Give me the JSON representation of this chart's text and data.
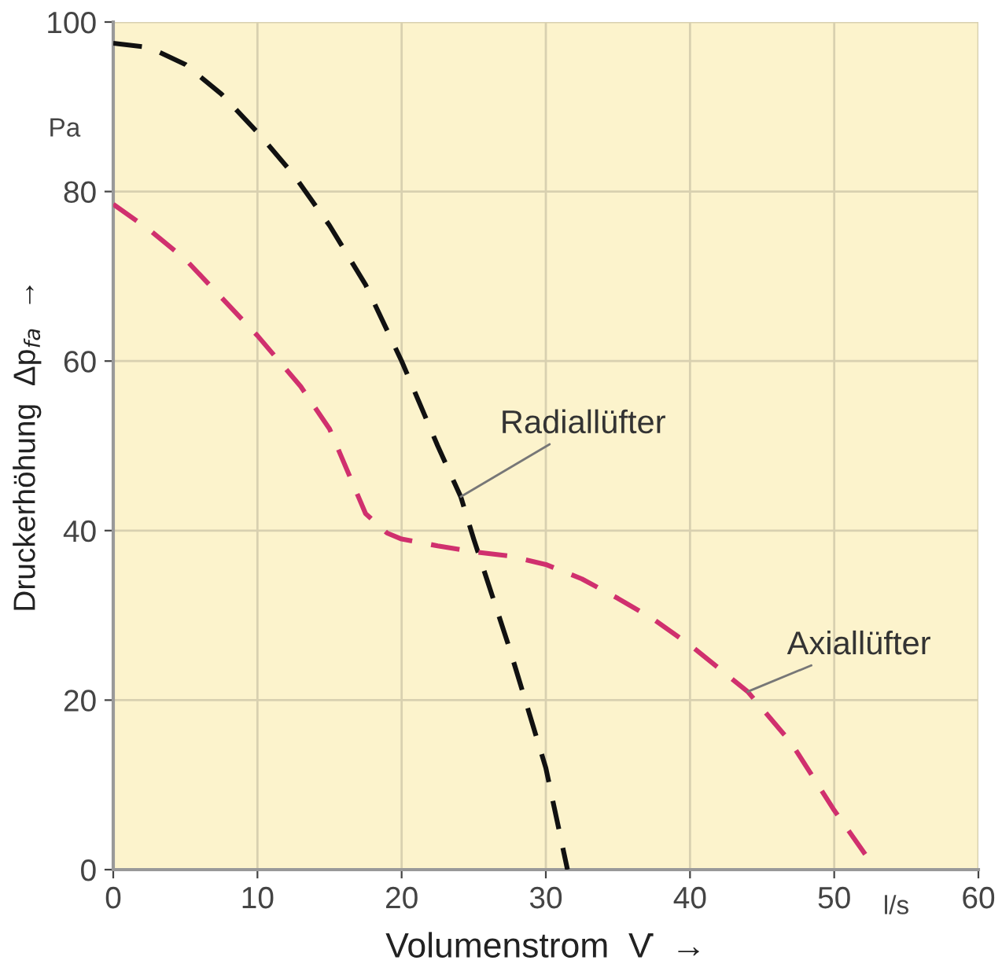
{
  "chart_data": {
    "type": "line",
    "xlabel": "Volumenstrom  V̇  →",
    "ylabel": "Druckerhöhung  Δp$_{fa}$  →",
    "xlim": [
      0,
      60
    ],
    "ylim": [
      0,
      100
    ],
    "xticks": [
      0,
      10,
      20,
      30,
      40,
      50,
      60
    ],
    "yticks": [
      0,
      20,
      40,
      60,
      80,
      100
    ],
    "grid": true,
    "line_style": "dashed",
    "marker": "none",
    "series": [
      {
        "color": "#111111",
        "x": [
          0,
          2.5,
          5,
          7.5,
          10,
          12.5,
          15,
          17.5,
          20,
          22.5,
          24.1,
          25,
          27.5,
          28.75,
          30,
          31.5
        ],
        "values": [
          97.5,
          97,
          95,
          91.5,
          87,
          82,
          76,
          69,
          60,
          50,
          44,
          39,
          26,
          19,
          12,
          0
        ]
      },
      {
        "color": "#d0306e",
        "x": [
          0,
          2.5,
          5,
          7.5,
          10,
          13,
          15,
          16.5,
          17.5,
          19,
          20,
          22.5,
          25,
          27.5,
          30,
          32.5,
          35,
          37.5,
          40,
          44,
          47,
          50,
          52.9
        ],
        "values": [
          78.5,
          75.5,
          72,
          67.5,
          63,
          57,
          52,
          46,
          42,
          39.7,
          39,
          38.2,
          37.5,
          37,
          36,
          34.3,
          32,
          29.5,
          26.5,
          21,
          15,
          7,
          0
        ]
      }
    ],
    "annotations": [
      {
        "text": "Radiallüfter",
        "x": 24.1,
        "y": 44
      },
      {
        "text": "Axiallüfter",
        "x": 44,
        "y": 21
      },
      "Pa",
      "l/s"
    ]
  }
}
